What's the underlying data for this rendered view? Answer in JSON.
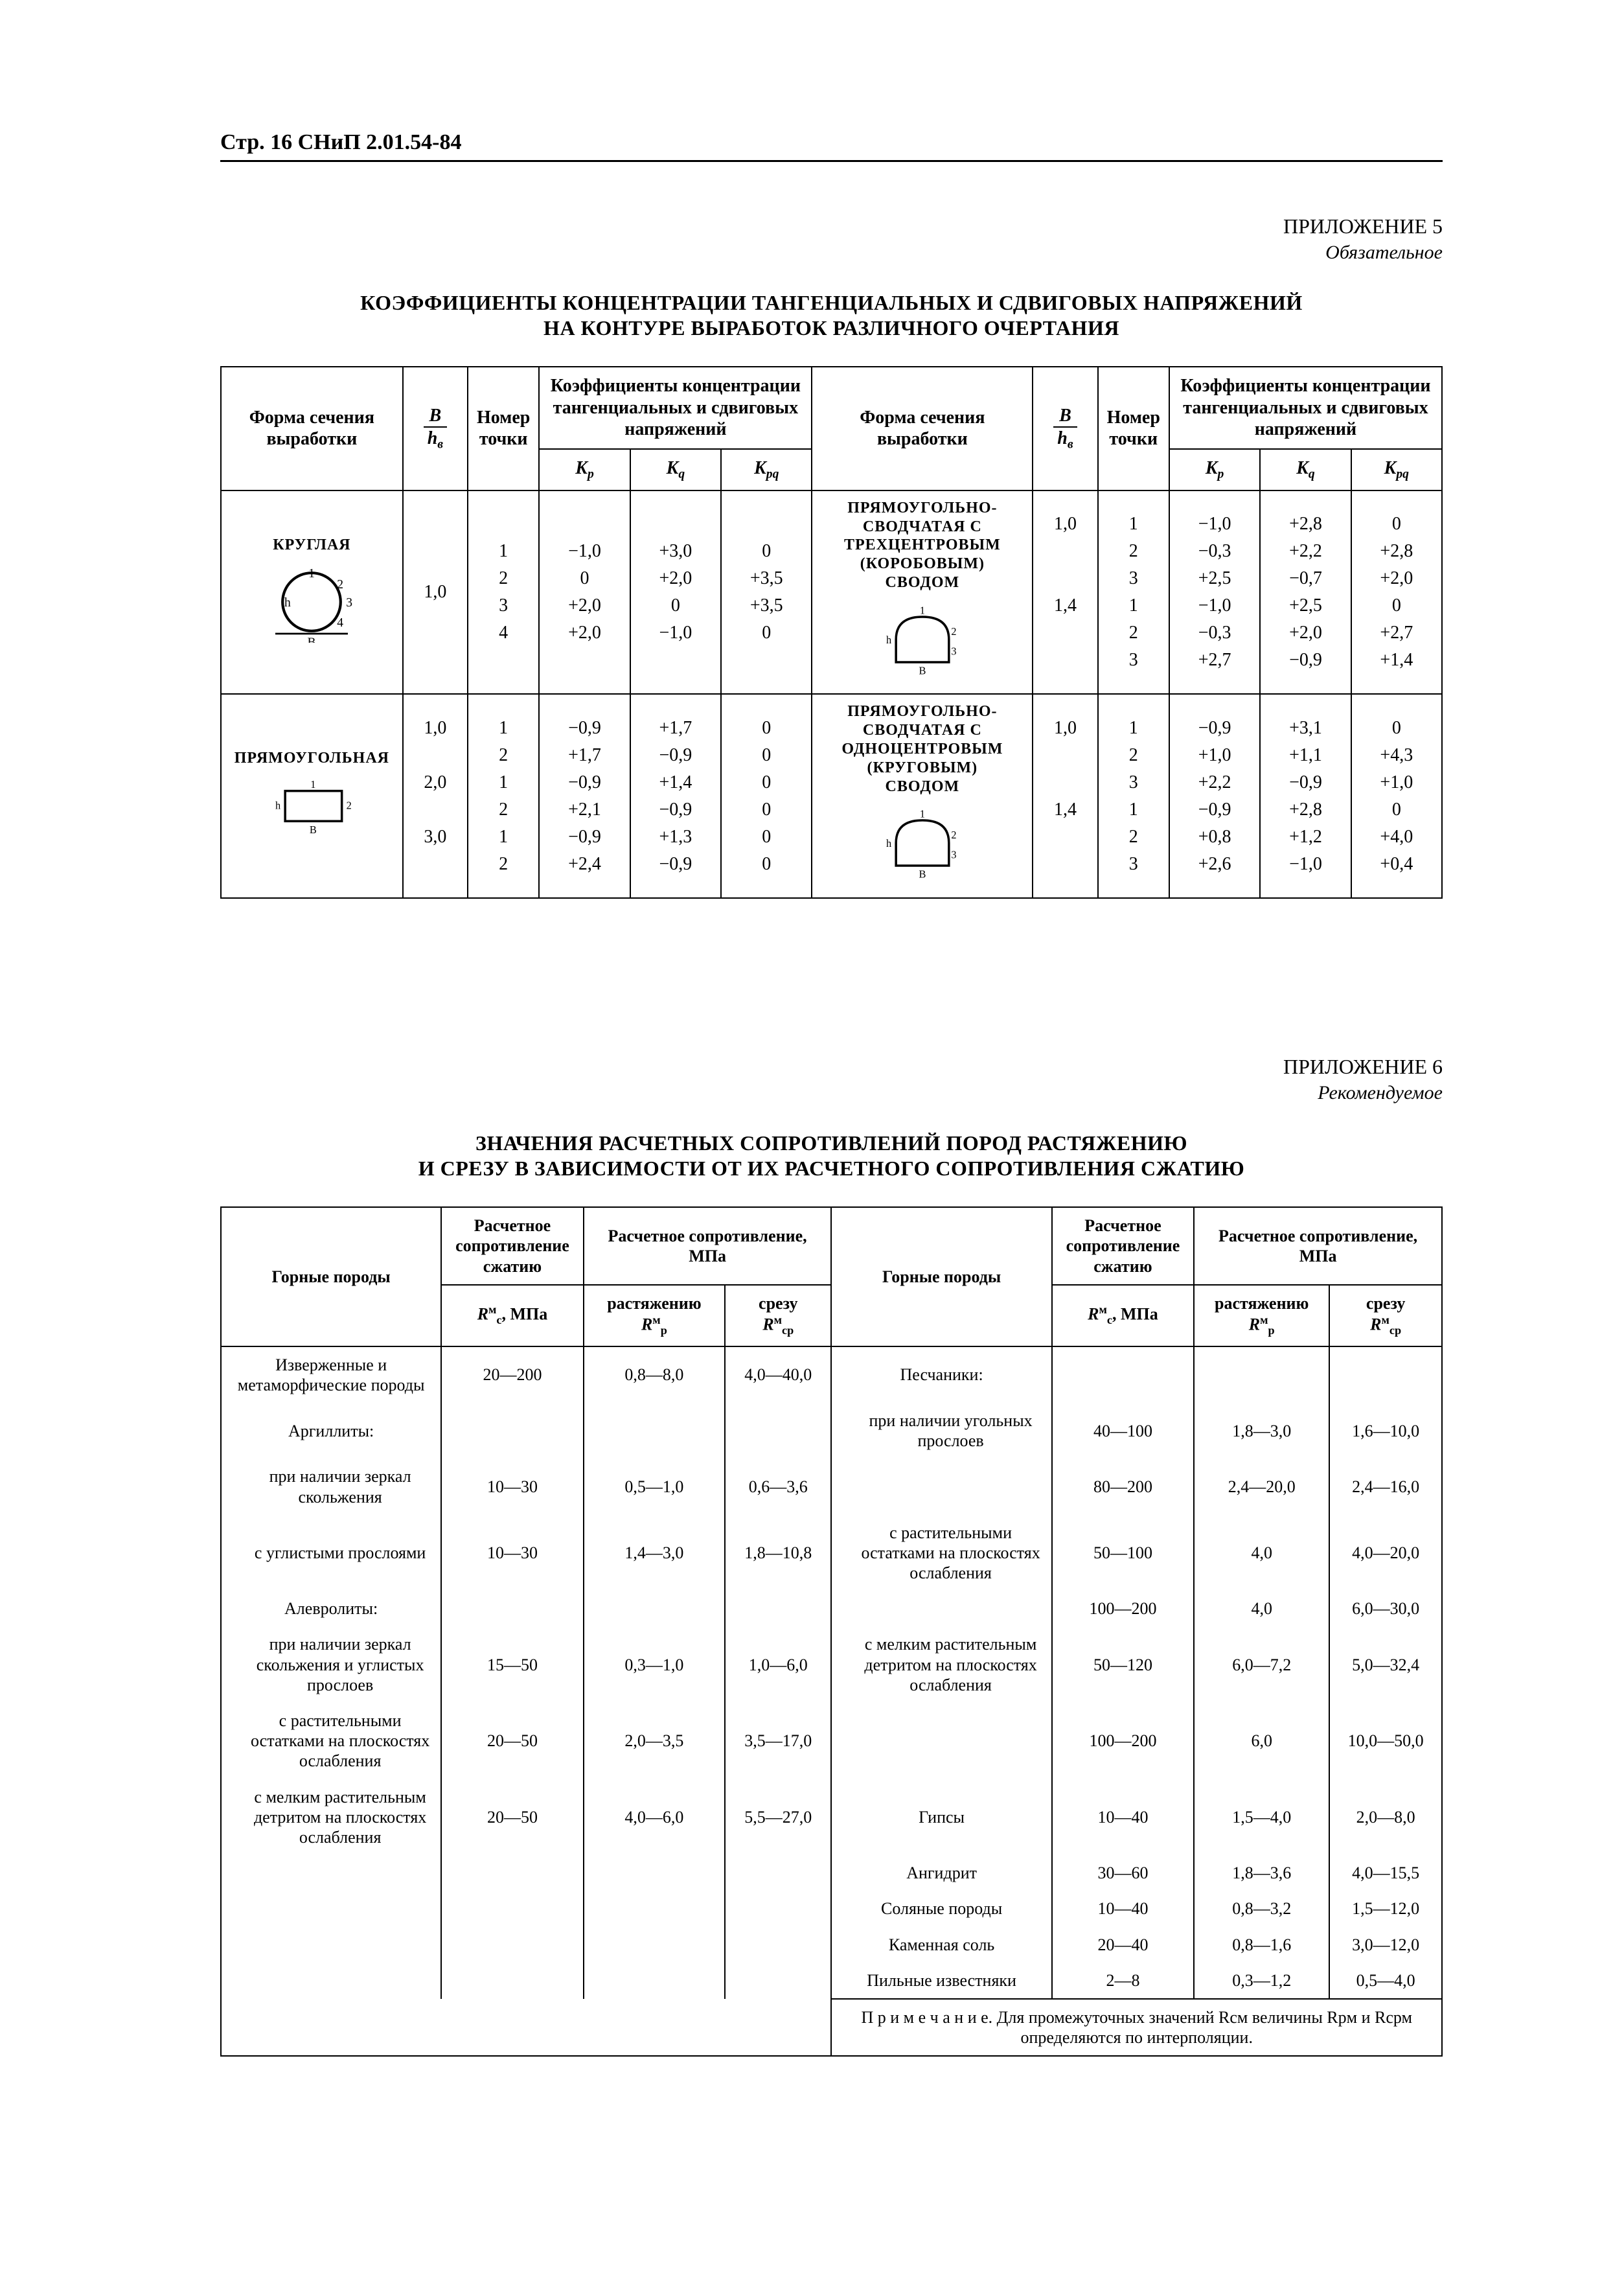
{
  "header": "Стр. 16 СНиП 2.01.54-84",
  "appendix5": {
    "label": "ПРИЛОЖЕНИЕ 5",
    "type": "Обязательное",
    "title_line1": "КОЭФФИЦИЕНТЫ КОНЦЕНТРАЦИИ ТАНГЕНЦИАЛЬНЫХ И СДВИГОВЫХ НАПРЯЖЕНИЙ",
    "title_line2": "НА КОНТУРЕ ВЫРАБОТОК РАЗЛИЧНОГО ОЧЕРТАНИЯ",
    "headers": {
      "shape": "Форма сечения выработки",
      "ratio_num": "B",
      "ratio_den": "hв",
      "point": "Номер точки",
      "coeff_group": "Коэффициенты концентрации тангенциальных и сдвиговых напряжений",
      "kp": "Kp",
      "kq": "Kq",
      "kpq": "Kpq"
    },
    "rows_left": [
      {
        "name": "КРУГЛАЯ",
        "shape_svg": "circle",
        "ratio": [
          "1,0"
        ],
        "pts": [
          "1",
          "2",
          "3",
          "4"
        ],
        "kp": [
          "−1,0",
          "0",
          "+2,0",
          "+2,0"
        ],
        "kq": [
          "+3,0",
          "+2,0",
          "0",
          "−1,0"
        ],
        "kpq": [
          "0",
          "+3,5",
          "+3,5",
          "0"
        ]
      },
      {
        "name": "ПРЯМОУГОЛЬНАЯ",
        "shape_svg": "rect",
        "ratio": [
          "1,0",
          "",
          "2,0",
          "",
          "3,0",
          ""
        ],
        "pts": [
          "1",
          "2",
          "1",
          "2",
          "1",
          "2"
        ],
        "kp": [
          "−0,9",
          "+1,7",
          "−0,9",
          "+2,1",
          "−0,9",
          "+2,4"
        ],
        "kq": [
          "+1,7",
          "−0,9",
          "+1,4",
          "−0,9",
          "+1,3",
          "−0,9"
        ],
        "kpq": [
          "0",
          "0",
          "0",
          "0",
          "0",
          "0"
        ]
      }
    ],
    "rows_right": [
      {
        "name_lines": [
          "ПРЯМОУГОЛЬНО-",
          "СВОДЧАТАЯ С",
          "ТРЕХЦЕНТРОВЫМ",
          "(КОРОБОВЫМ)",
          "СВОДОМ"
        ],
        "shape_svg": "arch3",
        "ratio": [
          "1,0",
          "",
          "",
          "1,4",
          "",
          ""
        ],
        "pts": [
          "1",
          "2",
          "3",
          "1",
          "2",
          "3"
        ],
        "kp": [
          "−1,0",
          "−0,3",
          "+2,5",
          "−1,0",
          "−0,3",
          "+2,7"
        ],
        "kq": [
          "+2,8",
          "+2,2",
          "−0,7",
          "+2,5",
          "+2,0",
          "−0,9"
        ],
        "kpq": [
          "0",
          "+2,8",
          "+2,0",
          "0",
          "+2,7",
          "+1,4"
        ]
      },
      {
        "name_lines": [
          "ПРЯМОУГОЛЬНО-",
          "СВОДЧАТАЯ С",
          "ОДНОЦЕНТРОВЫМ",
          "(КРУГОВЫМ)",
          "СВОДОМ"
        ],
        "shape_svg": "arch1",
        "ratio": [
          "1,0",
          "",
          "",
          "1,4",
          "",
          ""
        ],
        "pts": [
          "1",
          "2",
          "3",
          "1",
          "2",
          "3"
        ],
        "kp": [
          "−0,9",
          "+1,0",
          "+2,2",
          "−0,9",
          "+0,8",
          "+2,6"
        ],
        "kq": [
          "+3,1",
          "+1,1",
          "−0,9",
          "+2,8",
          "+1,2",
          "−1,0"
        ],
        "kpq": [
          "0",
          "+4,3",
          "+1,0",
          "0",
          "+4,0",
          "+0,4"
        ]
      }
    ]
  },
  "appendix6": {
    "label": "ПРИЛОЖЕНИЕ 6",
    "type": "Рекомендуемое",
    "title_line1": "ЗНАЧЕНИЯ РАСЧЕТНЫХ СОПРОТИВЛЕНИЙ ПОРОД РАСТЯЖЕНИЮ",
    "title_line2": "И СРЕЗУ В ЗАВИСИМОСТИ ОТ ИХ РАСЧЕТНОГО СОПРОТИВЛЕНИЯ СЖАТИЮ",
    "headers": {
      "rocks": "Горные породы",
      "rc_label": "Расчетное сопротивление сжатию",
      "rc_unit": "Rcм, МПа",
      "group": "Расчетное сопротивление, МПа",
      "rp": "растяжению",
      "rp_sym": "Rpм",
      "rcp": "срезу",
      "rcp_sym": "Rсрм"
    },
    "left": [
      {
        "name": "Изверженные и метаморфические породы",
        "rc": "20—200",
        "rp": "0,8—8,0",
        "rcp": "4,0—40,0"
      },
      {
        "name": "Аргиллиты:",
        "rc": "",
        "rp": "",
        "rcp": ""
      },
      {
        "name": "при наличии зеркал скольжения",
        "rc": "10—30",
        "rp": "0,5—1,0",
        "rcp": "0,6—3,6",
        "indent": true
      },
      {
        "name": "с углистыми прослоями",
        "rc": "10—30",
        "rp": "1,4—3,0",
        "rcp": "1,8—10,8",
        "indent": true
      },
      {
        "name": "Алевролиты:",
        "rc": "",
        "rp": "",
        "rcp": ""
      },
      {
        "name": "при наличии зеркал скольжения и углистых прослоев",
        "rc": "15—50",
        "rp": "0,3—1,0",
        "rcp": "1,0—6,0",
        "indent": true
      },
      {
        "name": "с растительными остатками на плоскостях ослабления",
        "rc": "20—50",
        "rp": "2,0—3,5",
        "rcp": "3,5—17,0",
        "indent": true
      },
      {
        "name": "с мелким растительным детритом на плоскостях ослабления",
        "rc": "20—50",
        "rp": "4,0—6,0",
        "rcp": "5,5—27,0",
        "indent": true
      }
    ],
    "right": [
      {
        "name": "Песчаники:",
        "rc": "",
        "rp": "",
        "rcp": ""
      },
      {
        "name": "при наличии угольных прослоев",
        "rc": "40—100",
        "rp": "1,8—3,0",
        "rcp": "1,6—10,0",
        "indent": true
      },
      {
        "name": "",
        "rc": "80—200",
        "rp": "2,4—20,0",
        "rcp": "2,4—16,0",
        "indent": true,
        "cont": true
      },
      {
        "name": "с растительными остатками на плоскостях ослабления",
        "rc": "50—100",
        "rp": "4,0",
        "rcp": "4,0—20,0",
        "indent": true
      },
      {
        "name": "",
        "rc": "100—200",
        "rp": "4,0",
        "rcp": "6,0—30,0",
        "indent": true,
        "cont": true
      },
      {
        "name": "с мелким растительным детритом на плоскостях ослабления",
        "rc": "50—120",
        "rp": "6,0—7,2",
        "rcp": "5,0—32,4",
        "indent": true
      },
      {
        "name": "",
        "rc": "100—200",
        "rp": "6,0",
        "rcp": "10,0—50,0",
        "indent": true,
        "cont": true
      },
      {
        "name": "Гипсы",
        "rc": "10—40",
        "rp": "1,5—4,0",
        "rcp": "2,0—8,0"
      },
      {
        "name": "Ангидрит",
        "rc": "30—60",
        "rp": "1,8—3,6",
        "rcp": "4,0—15,5"
      },
      {
        "name": "Соляные породы",
        "rc": "10—40",
        "rp": "0,8—3,2",
        "rcp": "1,5—12,0"
      },
      {
        "name": "Каменная соль",
        "rc": "20—40",
        "rp": "0,8—1,6",
        "rcp": "3,0—12,0"
      },
      {
        "name": "Пильные известняки",
        "rc": "2—8",
        "rp": "0,3—1,2",
        "rcp": "0,5—4,0"
      }
    ],
    "note": "П р и м е ч а н и е. Для промежуточных значений Rcм величины Rpм и Rсрм определяются по интерполяции."
  }
}
